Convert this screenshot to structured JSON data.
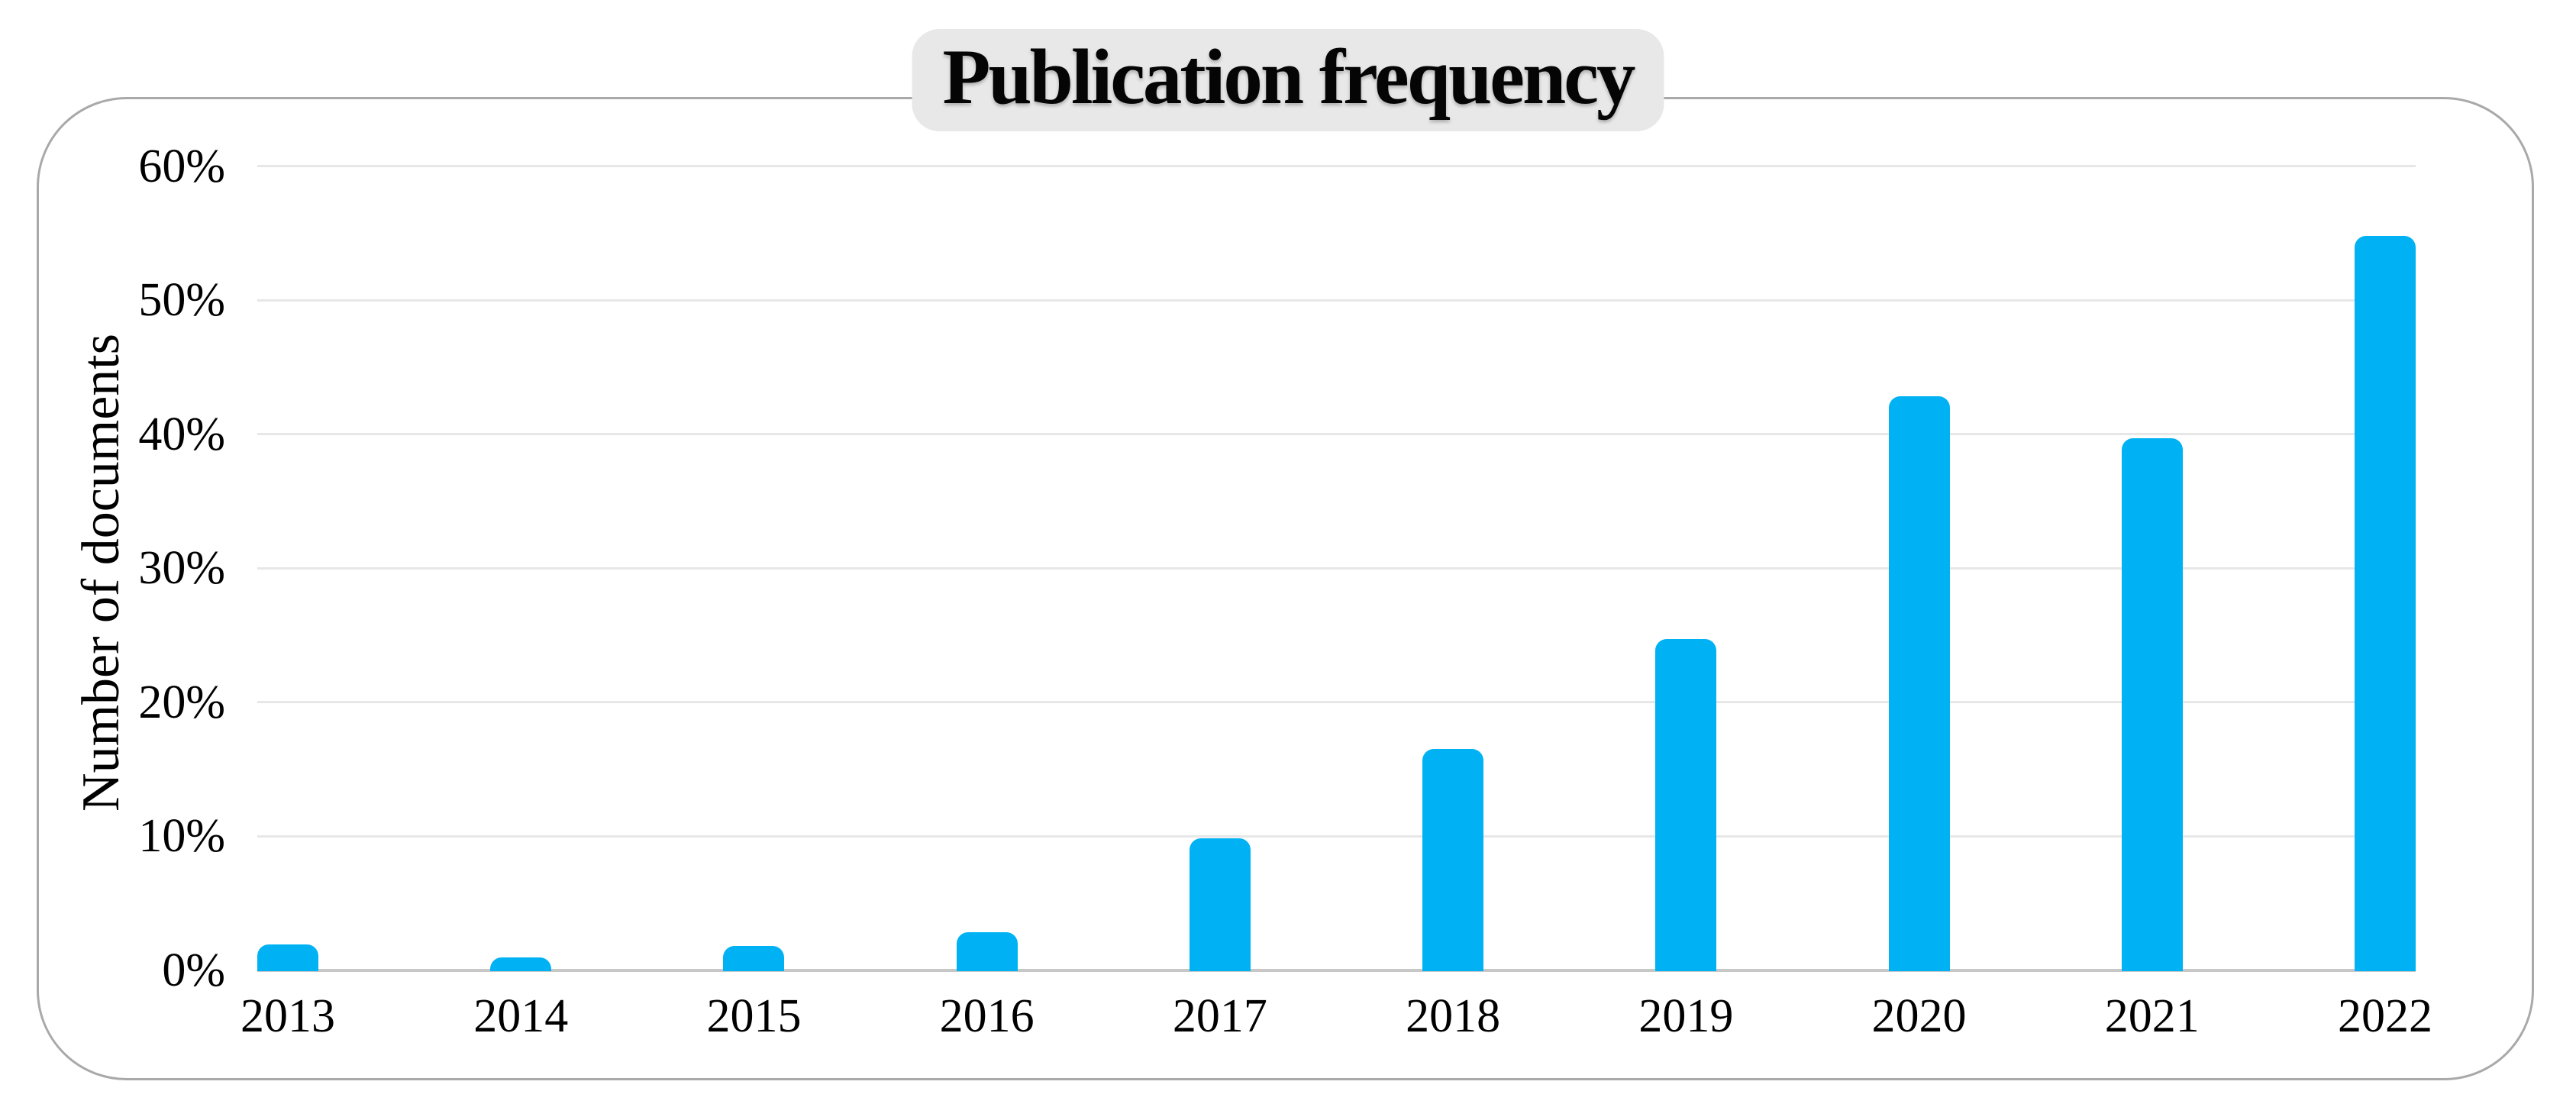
{
  "chart_data": {
    "type": "bar",
    "title": "Publication frequency",
    "xlabel": "",
    "ylabel": "Number of documents",
    "categories": [
      "2013",
      "2014",
      "2015",
      "2016",
      "2017",
      "2018",
      "2019",
      "2020",
      "2021",
      "2022"
    ],
    "values": [
      2.0,
      1.0,
      1.9,
      2.9,
      9.9,
      16.6,
      24.8,
      42.9,
      39.8,
      54.9
    ],
    "unit": "%",
    "y_ticks": [
      0,
      10,
      20,
      30,
      40,
      50,
      60
    ],
    "y_tick_labels": [
      "0%",
      "10%",
      "20%",
      "30%",
      "40%",
      "50%",
      "60%"
    ],
    "ylim": [
      0,
      60
    ],
    "grid": "horizontal",
    "legend": "none"
  },
  "style": {
    "bar_color": "#00b2f4",
    "gridline_color": "#e7e7e7",
    "axisline_color": "#c7c7c7",
    "frame_border_color": "#a9a9a9",
    "title_badge_bg": "#e8e8e8",
    "text_color": "#000000",
    "background": "#ffffff"
  }
}
